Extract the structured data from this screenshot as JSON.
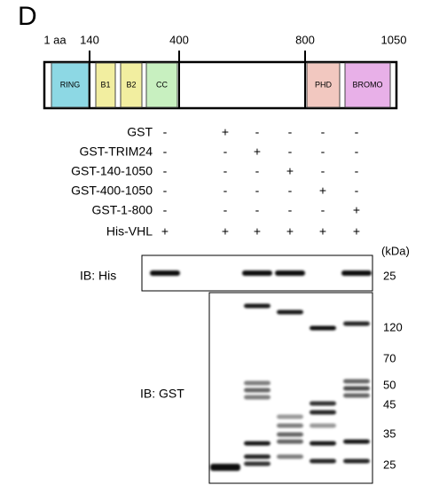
{
  "panel": "D",
  "domain_map": {
    "positions": [
      "1 aa",
      140,
      400,
      800,
      1050
    ],
    "domains": [
      "RING",
      "B1",
      "B2",
      "CC",
      "PHD",
      "BROMO"
    ]
  },
  "table": {
    "rows": [
      {
        "label": "GST",
        "signs": [
          "-",
          "+",
          "-",
          "-",
          "-",
          "-"
        ]
      },
      {
        "label": "GST-TRIM24",
        "signs": [
          "-",
          "-",
          "+",
          "-",
          "-",
          "-"
        ]
      },
      {
        "label": "GST-140-1050",
        "signs": [
          "-",
          "-",
          "-",
          "+",
          "-",
          "-"
        ]
      },
      {
        "label": "GST-400-1050",
        "signs": [
          "-",
          "-",
          "-",
          "-",
          "+",
          "-"
        ]
      },
      {
        "label": "GST-1-800",
        "signs": [
          "-",
          "-",
          "-",
          "-",
          "-",
          "+"
        ]
      },
      {
        "label": "His-VHL",
        "signs": [
          "+",
          "+",
          "+",
          "+",
          "+",
          "+"
        ]
      }
    ]
  },
  "kda_label": "(kDa)",
  "blots": [
    {
      "label": "IB: His",
      "markers": [
        25
      ]
    },
    {
      "label": "IB: GST",
      "markers": [
        120,
        70,
        50,
        45,
        35,
        25
      ]
    }
  ]
}
